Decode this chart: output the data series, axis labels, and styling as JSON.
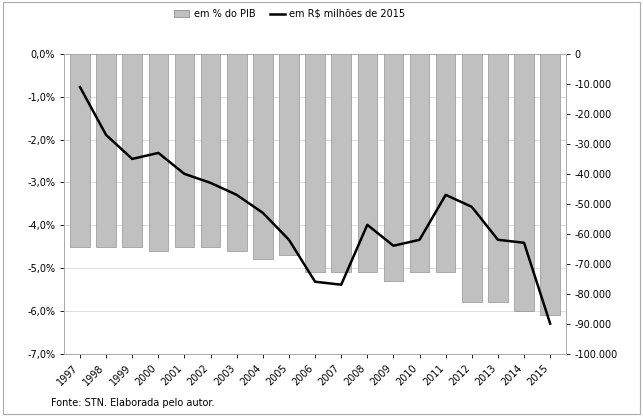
{
  "years": [
    1997,
    1998,
    1999,
    2000,
    2001,
    2002,
    2003,
    2004,
    2005,
    2006,
    2007,
    2008,
    2009,
    2010,
    2011,
    2012,
    2013,
    2014,
    2015
  ],
  "pct_pib": [
    -4.5,
    -4.5,
    -4.5,
    -4.6,
    -4.5,
    -4.5,
    -4.6,
    -4.8,
    -4.7,
    -5.1,
    -5.1,
    -5.1,
    -5.3,
    -5.1,
    -5.1,
    -5.8,
    -5.8,
    -6.0,
    -6.1
  ],
  "rs_milhoes": [
    -11000,
    -27000,
    -35000,
    -33000,
    -40000,
    -43000,
    -47000,
    -53000,
    -62000,
    -76000,
    -77000,
    -57000,
    -64000,
    -62000,
    -47000,
    -51000,
    -62000,
    -63000,
    -90000
  ],
  "bar_color": "#c0c0c0",
  "bar_edge_color": "#808080",
  "line_color": "#000000",
  "legend_bar_label": "em % do PIB",
  "legend_line_label": "em R$ milhões de 2015",
  "left_ylim": [
    -7.0,
    0.0
  ],
  "right_ylim": [
    -100000,
    0
  ],
  "left_yticks": [
    0.0,
    -1.0,
    -2.0,
    -3.0,
    -4.0,
    -5.0,
    -6.0,
    -7.0
  ],
  "right_yticks": [
    0,
    -10000,
    -20000,
    -30000,
    -40000,
    -50000,
    -60000,
    -70000,
    -80000,
    -90000,
    -100000
  ],
  "fonte": "Fonte: STN. Elaborada pelo autor.",
  "background_color": "#ffffff",
  "bar_width": 0.75,
  "font_size": 7,
  "line_width": 1.8
}
